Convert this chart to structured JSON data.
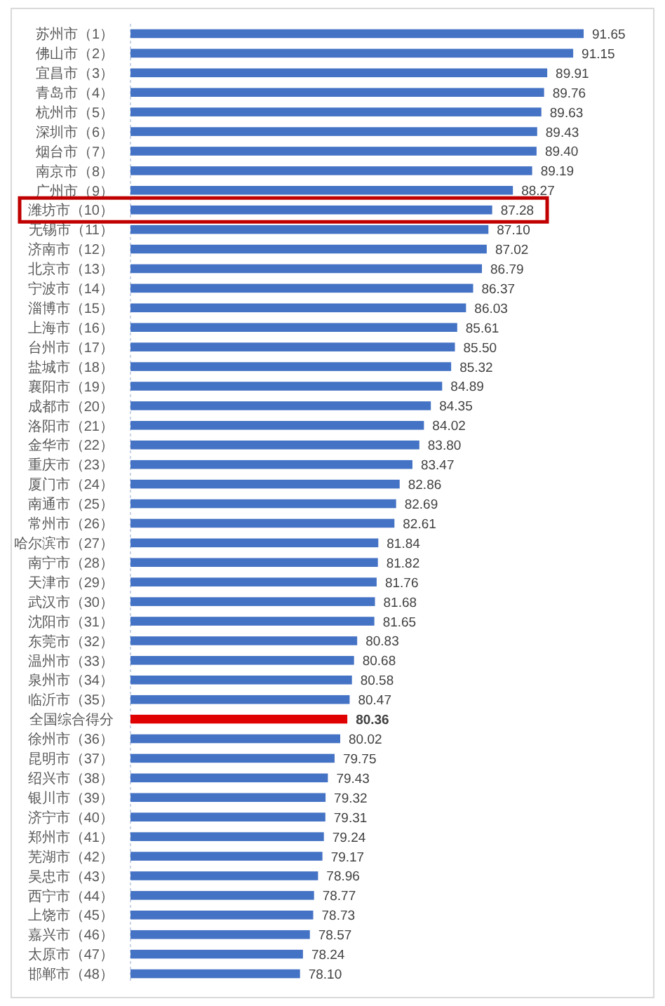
{
  "chart_data": {
    "type": "bar",
    "orientation": "horizontal",
    "tick_labels": "y",
    "categories": [
      "苏州市（1）",
      "佛山市（2）",
      "宜昌市（3）",
      "青岛市（4）",
      "杭州市（5）",
      "深圳市（6）",
      "烟台市（7）",
      "南京市（8）",
      "广州市（9）",
      "潍坊市（10）",
      "无锡市（11）",
      "济南市（12）",
      "北京市（13）",
      "宁波市（14）",
      "淄博市（15）",
      "上海市（16）",
      "台州市（17）",
      "盐城市（18）",
      "襄阳市（19）",
      "成都市（20）",
      "洛阳市（21）",
      "金华市（22）",
      "重庆市（23）",
      "厦门市（24）",
      "南通市（25）",
      "常州市（26）",
      "哈尔滨市（27）",
      "南宁市（28）",
      "天津市（29）",
      "武汉市（30）",
      "沈阳市（31）",
      "东莞市（32）",
      "温州市（33）",
      "泉州市（34）",
      "临沂市（35）",
      "全国综合得分",
      "徐州市（36）",
      "昆明市（37）",
      "绍兴市（38）",
      "银川市（39）",
      "济宁市（40）",
      "郑州市（41）",
      "芜湖市（42）",
      "吴忠市（43）",
      "西宁市（44）",
      "上饶市（45）",
      "嘉兴市（46）",
      "太原市（47）",
      "邯郸市（48）"
    ],
    "values": [
      91.65,
      91.15,
      89.91,
      89.76,
      89.63,
      89.43,
      89.4,
      89.19,
      88.27,
      87.28,
      87.1,
      87.02,
      86.79,
      86.37,
      86.03,
      85.61,
      85.5,
      85.32,
      84.89,
      84.35,
      84.02,
      83.8,
      83.47,
      82.86,
      82.69,
      82.61,
      81.84,
      81.82,
      81.76,
      81.68,
      81.65,
      80.83,
      80.68,
      80.58,
      80.47,
      80.36,
      80.02,
      79.75,
      79.43,
      79.32,
      79.31,
      79.24,
      79.17,
      78.96,
      78.77,
      78.73,
      78.57,
      78.24,
      78.1
    ],
    "value_labels": [
      "91.65",
      "91.15",
      "89.91",
      "89.76",
      "89.63",
      "89.43",
      "89.40",
      "89.19",
      "88.27",
      "87.28",
      "87.10",
      "87.02",
      "86.79",
      "86.37",
      "86.03",
      "85.61",
      "85.50",
      "85.32",
      "84.89",
      "84.35",
      "84.02",
      "83.80",
      "83.47",
      "82.86",
      "82.69",
      "82.61",
      "81.84",
      "81.82",
      "81.76",
      "81.68",
      "81.65",
      "80.83",
      "80.68",
      "80.58",
      "80.47",
      "80.36",
      "80.02",
      "79.75",
      "79.43",
      "79.32",
      "79.31",
      "79.24",
      "79.17",
      "78.96",
      "78.77",
      "78.73",
      "78.57",
      "78.24",
      "78.10"
    ],
    "colors": [
      "#4472c4",
      "#4472c4",
      "#4472c4",
      "#4472c4",
      "#4472c4",
      "#4472c4",
      "#4472c4",
      "#4472c4",
      "#4472c4",
      "#4472c4",
      "#4472c4",
      "#4472c4",
      "#4472c4",
      "#4472c4",
      "#4472c4",
      "#4472c4",
      "#4472c4",
      "#4472c4",
      "#4472c4",
      "#4472c4",
      "#4472c4",
      "#4472c4",
      "#4472c4",
      "#4472c4",
      "#4472c4",
      "#4472c4",
      "#4472c4",
      "#4472c4",
      "#4472c4",
      "#4472c4",
      "#4472c4",
      "#4472c4",
      "#4472c4",
      "#4472c4",
      "#4472c4",
      "#e00000",
      "#4472c4",
      "#4472c4",
      "#4472c4",
      "#4472c4",
      "#4472c4",
      "#4472c4",
      "#4472c4",
      "#4472c4",
      "#4472c4",
      "#4472c4",
      "#4472c4",
      "#4472c4",
      "#4472c4"
    ],
    "xlim": [
      70,
      95
    ]
  }
}
